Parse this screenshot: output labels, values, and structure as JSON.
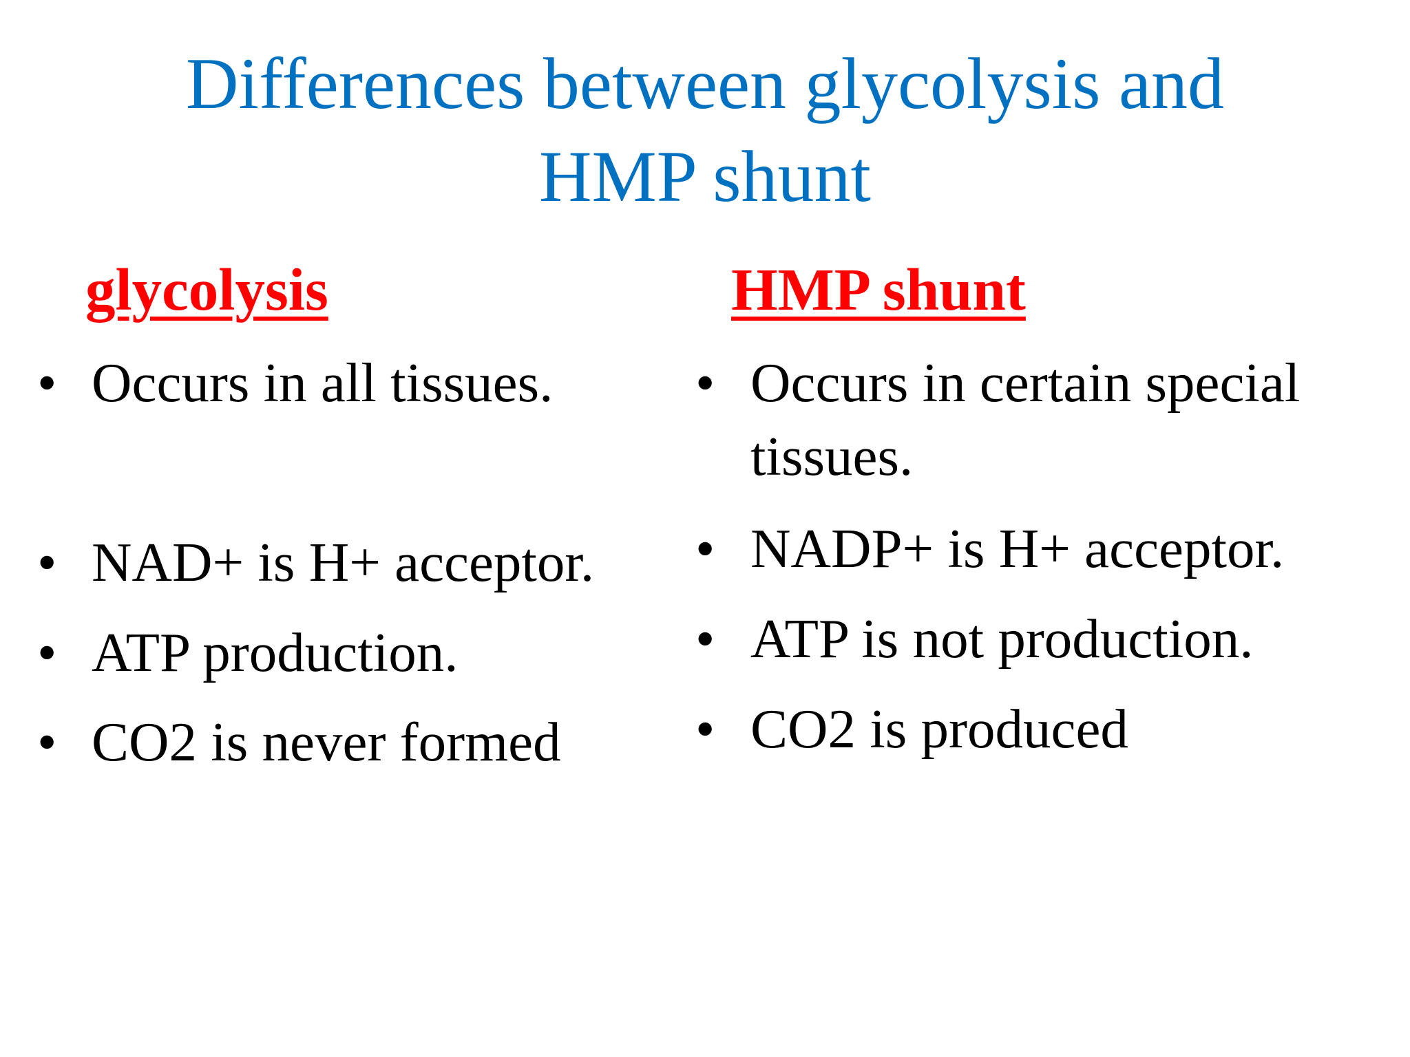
{
  "title": {
    "line1": "Differences between glycolysis and",
    "line2": "HMP shunt"
  },
  "colors": {
    "title": "#0070C0",
    "heading": "#FF0000",
    "text": "#000000"
  },
  "left": {
    "heading": "glycolysis",
    "items": [
      "Occurs in all tissues.",
      "NAD+ is H+ acceptor.",
      "ATP production.",
      "CO2 is never formed"
    ]
  },
  "right": {
    "heading": "HMP shunt",
    "items": [
      "Occurs in certain special",
      "tissues.",
      "NADP+ is H+ acceptor.",
      "ATP is not production.",
      "CO2 is produced"
    ]
  },
  "bullet": "•"
}
